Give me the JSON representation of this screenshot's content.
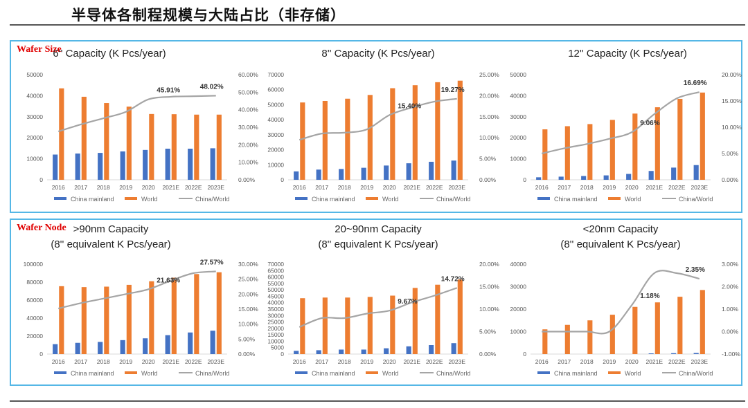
{
  "page": {
    "title": "半导体各制程规模与大陆占比（非存储）"
  },
  "panels": [
    {
      "label": "Wafer Size"
    },
    {
      "label": "Wafer Node"
    }
  ],
  "colors": {
    "china": "#4472c4",
    "world": "#ed7d31",
    "ratio": "#a5a5a5",
    "panel_border": "#55b7e6",
    "label_red": "#e00000"
  },
  "chart_data": [
    {
      "type": "bar",
      "title": "6'' Capacity (K Pcs/year)",
      "categories": [
        "2016",
        "2017",
        "2018",
        "2019",
        "2020",
        "2021E",
        "2022E",
        "2023E"
      ],
      "series": [
        {
          "name": "China mainland",
          "values": [
            12000,
            12500,
            12800,
            13500,
            14200,
            14800,
            14800,
            15000
          ]
        },
        {
          "name": "World",
          "values": [
            43500,
            39500,
            36500,
            34800,
            31300,
            31200,
            31000,
            31000
          ]
        },
        {
          "name": "China/World",
          "values": [
            0.276,
            0.316,
            0.351,
            0.388,
            0.459,
            0.474,
            0.477,
            0.4802
          ],
          "axis": "right"
        }
      ],
      "ylim": [
        0,
        50000
      ],
      "yticks": [
        "0",
        "10000",
        "20000",
        "30000",
        "40000",
        "50000"
      ],
      "y2lim": [
        0,
        0.6
      ],
      "y2ticks": [
        "0.00%",
        "10.00%",
        "20.00%",
        "30.00%",
        "40.00%",
        "50.00%",
        "60.00%"
      ],
      "annotations": [
        {
          "index": 4,
          "text": "45.91%"
        },
        {
          "index": 7,
          "text": "48.02%"
        }
      ]
    },
    {
      "type": "bar",
      "title": "8'' Capacity (K Pcs/year)",
      "categories": [
        "2016",
        "2017",
        "2018",
        "2019",
        "2020",
        "2021E",
        "2022E",
        "2023E"
      ],
      "series": [
        {
          "name": "China mainland",
          "values": [
            5600,
            6800,
            7200,
            8000,
            9500,
            11000,
            12000,
            12800
          ]
        },
        {
          "name": "World",
          "values": [
            51500,
            52500,
            54000,
            56500,
            61000,
            63000,
            65000,
            66000
          ]
        },
        {
          "name": "China/World",
          "values": [
            0.095,
            0.11,
            0.112,
            0.12,
            0.154,
            0.172,
            0.186,
            0.1927
          ],
          "axis": "right"
        }
      ],
      "ylim": [
        0,
        70000
      ],
      "yticks": [
        "0",
        "10000",
        "20000",
        "30000",
        "40000",
        "50000",
        "60000",
        "70000"
      ],
      "y2lim": [
        0,
        0.25
      ],
      "y2ticks": [
        "0.00%",
        "5.00%",
        "10.00%",
        "15.00%",
        "20.00%",
        "25.00%"
      ],
      "annotations": [
        {
          "index": 4,
          "text": "15.40%"
        },
        {
          "index": 7,
          "text": "19.27%"
        }
      ]
    },
    {
      "type": "bar",
      "title": "12''  Capacity (K Pcs/year)",
      "categories": [
        "2016",
        "2017",
        "2018",
        "2019",
        "2020",
        "2021E",
        "2022E",
        "2023E"
      ],
      "series": [
        {
          "name": "China mainland",
          "values": [
            1200,
            1500,
            1800,
            2100,
            2800,
            4200,
            5800,
            7000
          ]
        },
        {
          "name": "World",
          "values": [
            24000,
            25500,
            26500,
            28500,
            31500,
            34500,
            38500,
            41500
          ]
        },
        {
          "name": "China/World",
          "values": [
            0.05,
            0.06,
            0.068,
            0.078,
            0.0906,
            0.125,
            0.155,
            0.1669
          ],
          "axis": "right"
        }
      ],
      "ylim": [
        0,
        50000
      ],
      "yticks": [
        "0",
        "10000",
        "20000",
        "30000",
        "40000",
        "50000"
      ],
      "y2lim": [
        0,
        0.2
      ],
      "y2ticks": [
        "0.00%",
        "5.00%",
        "10.00%",
        "15.00%",
        "20.00%"
      ],
      "annotations": [
        {
          "index": 4,
          "text": "9.06%"
        },
        {
          "index": 7,
          "text": "16.69%"
        }
      ]
    },
    {
      "type": "bar",
      "title": ">90nm Capacity",
      "subtitle": "(8'' equivalent K Pcs/year)",
      "categories": [
        "2016",
        "2017",
        "2018",
        "2019",
        "2020",
        "2021E",
        "2022E",
        "2023E"
      ],
      "series": [
        {
          "name": "China mainland",
          "values": [
            11000,
            12500,
            13500,
            15500,
            17500,
            21000,
            24000,
            26000
          ]
        },
        {
          "name": "World",
          "values": [
            75500,
            74500,
            75000,
            77000,
            81000,
            85000,
            89000,
            91000
          ]
        },
        {
          "name": "China/World",
          "values": [
            0.152,
            0.17,
            0.185,
            0.2,
            0.2163,
            0.245,
            0.27,
            0.2757
          ],
          "axis": "right"
        }
      ],
      "ylim": [
        0,
        100000
      ],
      "yticks": [
        "0",
        "20000",
        "40000",
        "60000",
        "80000",
        "100000"
      ],
      "y2lim": [
        0,
        0.3
      ],
      "y2ticks": [
        "0.00%",
        "5.00%",
        "10.00%",
        "15.00%",
        "20.00%",
        "25.00%",
        "30.00%"
      ],
      "annotations": [
        {
          "index": 4,
          "text": "21.63%"
        },
        {
          "index": 7,
          "text": "27.57%"
        }
      ]
    },
    {
      "type": "bar",
      "title": "20~90nm Capacity",
      "subtitle": "(8'' equivalent K Pcs/year)",
      "categories": [
        "2016",
        "2017",
        "2018",
        "2019",
        "2020",
        "2021E",
        "2022E",
        "2023E"
      ],
      "series": [
        {
          "name": "China mainland",
          "values": [
            2500,
            3000,
            3500,
            3500,
            4500,
            6000,
            7000,
            8500
          ]
        },
        {
          "name": "World",
          "values": [
            43500,
            44000,
            44000,
            44500,
            45500,
            51500,
            54000,
            58000
          ]
        },
        {
          "name": "China/World",
          "values": [
            0.06,
            0.08,
            0.08,
            0.09,
            0.0967,
            0.115,
            0.13,
            0.1472
          ],
          "axis": "right"
        }
      ],
      "ylim": [
        0,
        70000
      ],
      "yticks": [
        "0",
        "5000",
        "10000",
        "15000",
        "20000",
        "25000",
        "30000",
        "35000",
        "40000",
        "45000",
        "50000",
        "55000",
        "60000",
        "65000",
        "70000"
      ],
      "y2lim": [
        0,
        0.2
      ],
      "y2ticks": [
        "0.00%",
        "5.00%",
        "10.00%",
        "15.00%",
        "20.00%"
      ],
      "annotations": [
        {
          "index": 4,
          "text": "9.67%"
        },
        {
          "index": 7,
          "text": "14.72%"
        }
      ]
    },
    {
      "type": "bar",
      "title": "<20nm Capacity",
      "subtitle": "(8'' equivalent K Pcs/year)",
      "categories": [
        "2016",
        "2017",
        "2018",
        "2019",
        "2020",
        "2021E",
        "2022E",
        "2023E"
      ],
      "series": [
        {
          "name": "China mainland",
          "values": [
            0,
            0,
            0,
            0,
            0,
            300,
            400,
            500
          ]
        },
        {
          "name": "World",
          "values": [
            11000,
            13000,
            15000,
            17500,
            21000,
            23000,
            25500,
            28500
          ]
        },
        {
          "name": "China/World",
          "values": [
            0.0,
            0.0,
            0.0,
            0.0,
            0.0118,
            0.026,
            0.026,
            0.0235
          ],
          "axis": "right"
        }
      ],
      "ylim": [
        0,
        40000
      ],
      "yticks": [
        "0",
        "10000",
        "20000",
        "30000",
        "40000"
      ],
      "y2lim": [
        -0.01,
        0.03
      ],
      "y2ticks": [
        "-1.00%",
        "0.00%",
        "1.00%",
        "2.00%",
        "3.00%"
      ],
      "annotations": [
        {
          "index": 4,
          "text": "1.18%"
        },
        {
          "index": 7,
          "text": "2.35%"
        }
      ]
    }
  ]
}
